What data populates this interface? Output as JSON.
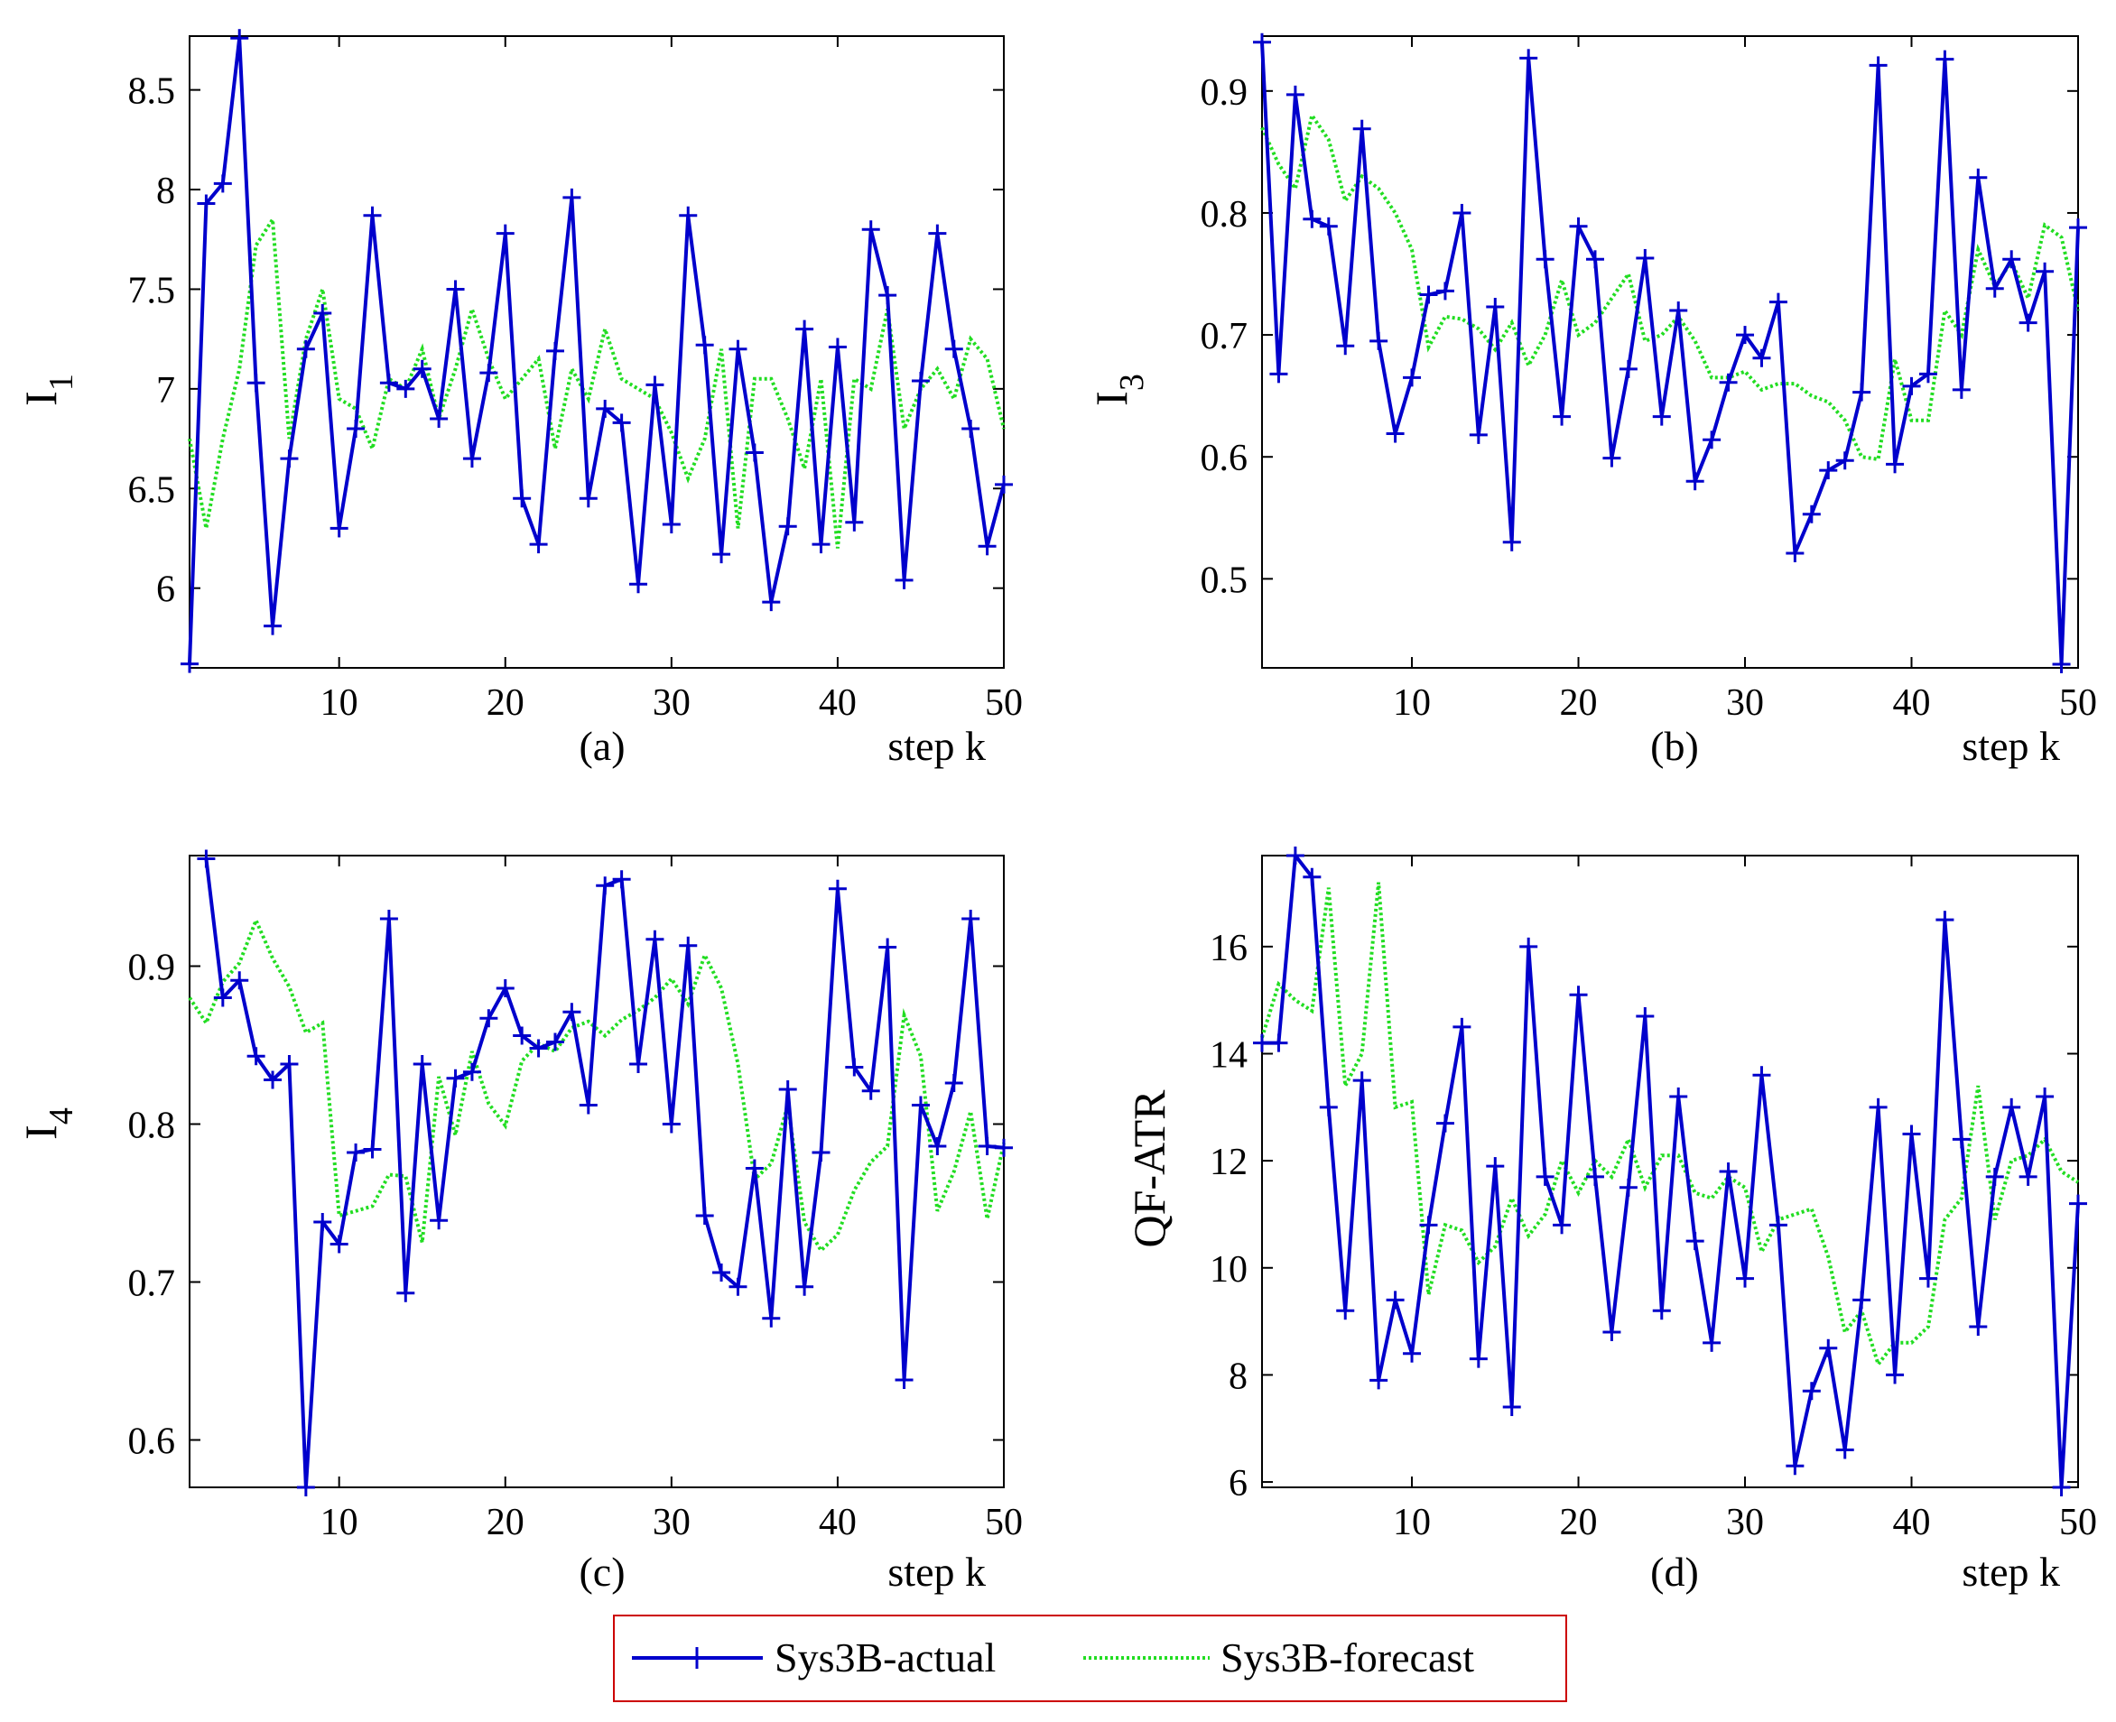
{
  "legend": {
    "actual": "Sys3B-actual",
    "forecast": "Sys3B-forecast",
    "colors": {
      "actual": "#0000cc",
      "forecast": "#22dd22",
      "frame": "#cc0000"
    }
  },
  "chart_data": [
    {
      "type": "line",
      "caption": "(a)",
      "xlabel": "step k",
      "ylabel": "I",
      "ylabel_sub": "1",
      "xlim": [
        1,
        50
      ],
      "ylim": [
        5.6,
        8.77
      ],
      "xticks": [
        10,
        20,
        30,
        40,
        50
      ],
      "yticks": [
        6,
        6.5,
        7,
        7.5,
        8,
        8.5
      ],
      "ytick_labels": [
        "6",
        "6.5",
        "7",
        "7.5",
        "8",
        "8.5"
      ],
      "series": [
        {
          "name": "Sys3B-actual",
          "values": [
            5.62,
            7.93,
            8.03,
            8.76,
            7.03,
            5.81,
            6.65,
            7.2,
            7.38,
            6.3,
            6.8,
            7.87,
            7.03,
            7.0,
            7.1,
            6.85,
            7.5,
            6.65,
            7.08,
            7.78,
            6.45,
            6.22,
            7.19,
            7.96,
            6.45,
            6.9,
            6.83,
            6.02,
            7.02,
            6.32,
            7.87,
            7.22,
            6.17,
            7.2,
            6.68,
            5.93,
            6.31,
            7.3,
            6.22,
            7.21,
            6.33,
            7.8,
            7.47,
            6.04,
            7.04,
            7.78,
            7.2,
            6.8,
            6.21,
            6.52
          ]
        },
        {
          "name": "Sys3B-forecast",
          "values": [
            6.75,
            6.3,
            6.75,
            7.1,
            7.72,
            7.85,
            6.75,
            7.25,
            7.5,
            6.95,
            6.9,
            6.7,
            7.05,
            7.0,
            7.2,
            6.85,
            7.1,
            7.4,
            7.15,
            6.95,
            7.05,
            7.15,
            6.7,
            7.1,
            6.95,
            7.3,
            7.05,
            7.0,
            6.95,
            6.78,
            6.55,
            6.75,
            7.2,
            6.3,
            7.05,
            7.05,
            6.85,
            6.6,
            7.05,
            6.2,
            7.05,
            7.0,
            7.4,
            6.8,
            7.0,
            7.1,
            6.95,
            7.25,
            7.15,
            6.8
          ]
        }
      ]
    },
    {
      "type": "line",
      "caption": "(b)",
      "xlabel": "step k",
      "ylabel": "I",
      "ylabel_sub": "3",
      "xlim": [
        1,
        50
      ],
      "ylim": [
        0.427,
        0.945
      ],
      "xticks": [
        10,
        20,
        30,
        40,
        50
      ],
      "yticks": [
        0.5,
        0.6,
        0.7,
        0.8,
        0.9
      ],
      "ytick_labels": [
        "0.5",
        "0.6",
        "0.7",
        "0.8",
        "0.9"
      ],
      "series": [
        {
          "name": "Sys3B-actual",
          "values": [
            0.94,
            0.668,
            0.897,
            0.795,
            0.789,
            0.691,
            0.869,
            0.695,
            0.619,
            0.665,
            0.733,
            0.736,
            0.8,
            0.618,
            0.723,
            0.53,
            0.927,
            0.762,
            0.633,
            0.789,
            0.762,
            0.599,
            0.672,
            0.763,
            0.633,
            0.72,
            0.58,
            0.614,
            0.661,
            0.7,
            0.681,
            0.727,
            0.521,
            0.553,
            0.589,
            0.597,
            0.653,
            0.921,
            0.594,
            0.658,
            0.668,
            0.926,
            0.655,
            0.829,
            0.738,
            0.762,
            0.71,
            0.752,
            0.43,
            0.788
          ]
        },
        {
          "name": "Sys3B-forecast",
          "values": [
            0.87,
            0.84,
            0.82,
            0.88,
            0.86,
            0.81,
            0.83,
            0.82,
            0.8,
            0.77,
            0.69,
            0.715,
            0.713,
            0.705,
            0.688,
            0.71,
            0.675,
            0.7,
            0.745,
            0.7,
            0.71,
            0.73,
            0.75,
            0.695,
            0.7,
            0.715,
            0.695,
            0.665,
            0.665,
            0.67,
            0.655,
            0.66,
            0.66,
            0.65,
            0.645,
            0.63,
            0.6,
            0.598,
            0.68,
            0.63,
            0.63,
            0.72,
            0.7,
            0.77,
            0.74,
            0.76,
            0.73,
            0.79,
            0.78,
            0.72
          ]
        }
      ]
    },
    {
      "type": "line",
      "caption": "(c)",
      "xlabel": "step k",
      "ylabel": "I",
      "ylabel_sub": "4",
      "xlim": [
        1,
        50
      ],
      "ylim": [
        0.57,
        0.97
      ],
      "xticks": [
        10,
        20,
        30,
        40,
        50
      ],
      "yticks": [
        0.6,
        0.7,
        0.8,
        0.9
      ],
      "ytick_labels": [
        "0.6",
        "0.7",
        "0.8",
        "0.9"
      ],
      "series": [
        {
          "name": "Sys3B-actual",
          "values": [
            null,
            0.968,
            0.88,
            0.891,
            0.843,
            0.828,
            0.838,
            0.57,
            0.738,
            0.724,
            0.782,
            0.784,
            0.93,
            0.693,
            0.838,
            0.739,
            0.829,
            0.833,
            0.867,
            0.886,
            0.856,
            0.848,
            0.852,
            0.871,
            0.812,
            0.951,
            0.955,
            0.838,
            0.917,
            0.8,
            0.913,
            0.742,
            0.706,
            0.697,
            0.772,
            0.677,
            0.822,
            0.697,
            0.782,
            0.949,
            0.836,
            0.821,
            0.912,
            0.638,
            0.812,
            0.786,
            0.826,
            0.93,
            0.786,
            0.785
          ]
        },
        {
          "name": "Sys3B-forecast",
          "values": [
            0.88,
            0.864,
            0.89,
            0.902,
            0.929,
            0.905,
            0.887,
            0.858,
            0.864,
            0.742,
            0.745,
            0.748,
            0.768,
            0.767,
            0.725,
            0.83,
            0.793,
            0.846,
            0.813,
            0.799,
            0.84,
            0.851,
            0.846,
            0.861,
            0.865,
            0.856,
            0.866,
            0.872,
            0.88,
            0.892,
            0.876,
            0.907,
            0.886,
            0.838,
            0.765,
            0.775,
            0.812,
            0.738,
            0.72,
            0.73,
            0.758,
            0.776,
            0.786,
            0.869,
            0.843,
            0.745,
            0.77,
            0.808,
            0.74,
            0.788
          ]
        }
      ]
    },
    {
      "type": "line",
      "caption": "(d)",
      "xlabel": "step k",
      "ylabel": "QF-ATR",
      "ylabel_sub": "",
      "xlim": [
        1,
        50
      ],
      "ylim": [
        5.9,
        17.7
      ],
      "xticks": [
        10,
        20,
        30,
        40,
        50
      ],
      "yticks": [
        6,
        8,
        10,
        12,
        14,
        16
      ],
      "ytick_labels": [
        "6",
        "8",
        "10",
        "12",
        "14",
        "16"
      ],
      "series": [
        {
          "name": "Sys3B-actual",
          "values": [
            14.2,
            14.2,
            17.7,
            17.3,
            13.0,
            9.2,
            13.5,
            7.9,
            9.4,
            8.4,
            10.8,
            12.7,
            14.5,
            8.3,
            11.9,
            7.4,
            16.0,
            11.7,
            10.8,
            15.1,
            11.7,
            8.8,
            11.5,
            14.7,
            9.2,
            13.2,
            10.5,
            8.6,
            11.8,
            9.8,
            13.6,
            10.8,
            6.3,
            7.7,
            8.5,
            6.6,
            9.4,
            13.0,
            8.0,
            12.5,
            9.8,
            16.5,
            12.4,
            8.9,
            11.7,
            13.0,
            11.7,
            13.2,
            5.9,
            11.2
          ]
        },
        {
          "name": "Sys3B-forecast",
          "values": [
            14.3,
            15.3,
            15.0,
            14.8,
            17.1,
            13.4,
            14.0,
            17.2,
            13.0,
            13.1,
            9.5,
            10.8,
            10.7,
            10.1,
            10.4,
            11.3,
            10.6,
            11.0,
            12.0,
            11.4,
            12.0,
            11.7,
            12.4,
            11.5,
            12.1,
            12.1,
            11.4,
            11.3,
            11.7,
            11.5,
            10.3,
            10.9,
            11.0,
            11.1,
            10.2,
            8.8,
            9.2,
            8.2,
            8.6,
            8.6,
            8.9,
            10.9,
            11.3,
            13.4,
            10.9,
            12.0,
            12.1,
            12.4,
            11.8,
            11.6
          ]
        }
      ]
    }
  ]
}
